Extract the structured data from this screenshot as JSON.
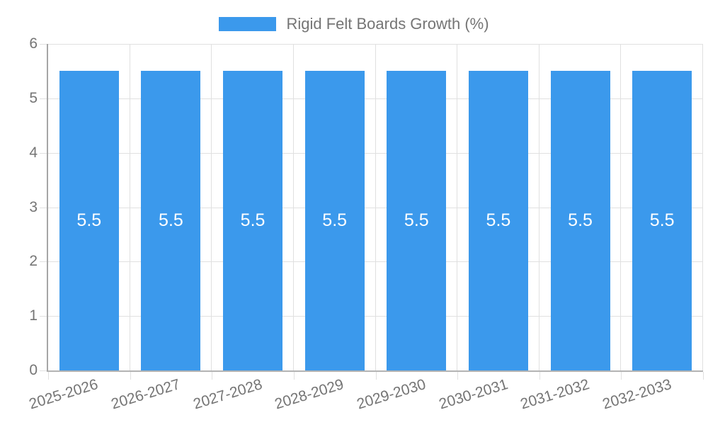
{
  "chart_data": {
    "type": "bar",
    "title": "",
    "categories": [
      "2025-2026",
      "2026-2027",
      "2027-2028",
      "2028-2029",
      "2029-2030",
      "2030-2031",
      "2031-2032",
      "2032-2033"
    ],
    "series": [
      {
        "name": "Rigid Felt Boards Growth (%)",
        "values": [
          5.5,
          5.5,
          5.5,
          5.5,
          5.5,
          5.5,
          5.5,
          5.5
        ]
      }
    ],
    "bar_value_labels": [
      "5.5",
      "5.5",
      "5.5",
      "5.5",
      "5.5",
      "5.5",
      "5.5",
      "5.5"
    ],
    "xlabel": "",
    "ylabel": "",
    "ylim": [
      0,
      6
    ],
    "yticks": [
      0,
      1,
      2,
      3,
      4,
      5,
      6
    ],
    "grid": true,
    "legend_position": "top-center",
    "x_label_rotation_deg": -17
  },
  "colors": {
    "bar": "#3b99ec",
    "bar_value_label": "#ffffff",
    "axis_text": "#757575",
    "gridline": "#e0e0e0",
    "axis_line": "#a6a6a6",
    "background": "#ffffff"
  }
}
